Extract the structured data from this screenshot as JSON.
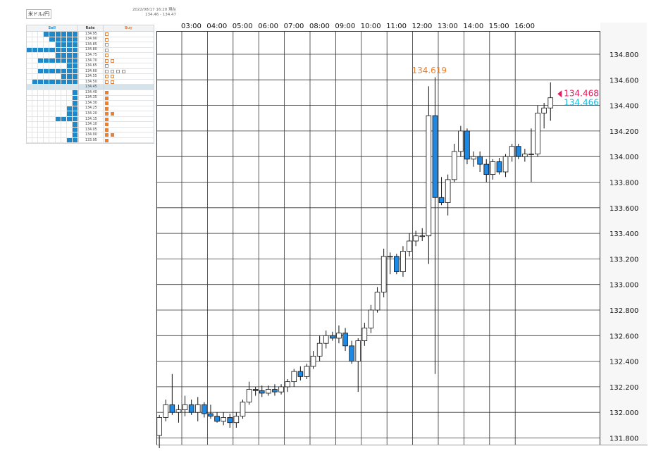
{
  "header": {
    "pair_button": "米ドル/円",
    "timestamp": "2022/08/17 16:20 現在",
    "range": "134.46 - 134.47"
  },
  "orderbook": {
    "headers": {
      "sell": "Sell",
      "rate": "Rate",
      "buy": "Buy"
    },
    "colors": {
      "sell": "#1e88c8",
      "buy": "#f07e2a"
    },
    "rows": [
      {
        "rate": "134.95",
        "sell": 6,
        "buy": 1,
        "buy_type": "outline"
      },
      {
        "rate": "134.90",
        "sell": 5,
        "buy": 1,
        "buy_type": "outline"
      },
      {
        "rate": "134.85",
        "sell": 4,
        "buy": 1,
        "buy_type": "outline"
      },
      {
        "rate": "134.80",
        "sell": 9,
        "buy": 1,
        "buy_type": "outline"
      },
      {
        "rate": "134.75",
        "sell": 4,
        "buy": 1,
        "buy_type": "outline"
      },
      {
        "rate": "134.70",
        "sell": 7,
        "buy": 2,
        "buy_type": "outline"
      },
      {
        "rate": "134.65",
        "sell": 2,
        "buy": 1,
        "buy_type": "outline"
      },
      {
        "rate": "134.60",
        "sell": 7,
        "buy": 4,
        "buy_type": "outline"
      },
      {
        "rate": "134.55",
        "sell": 3,
        "buy": 2,
        "buy_type": "outline"
      },
      {
        "rate": "134.50",
        "sell": 8,
        "buy": 2,
        "buy_type": "outline"
      },
      {
        "rate": "134.45",
        "sell": 0,
        "buy": 0,
        "buy_type": "none",
        "current": true
      },
      {
        "rate": "134.40",
        "sell": 1,
        "buy": 1,
        "buy_type": "filled"
      },
      {
        "rate": "134.35",
        "sell": 1,
        "buy": 1,
        "buy_type": "filled"
      },
      {
        "rate": "134.30",
        "sell": 1,
        "buy": 1,
        "buy_type": "filled"
      },
      {
        "rate": "134.25",
        "sell": 2,
        "buy": 1,
        "buy_type": "filled"
      },
      {
        "rate": "134.20",
        "sell": 2,
        "buy": 2,
        "buy_type": "filled"
      },
      {
        "rate": "134.15",
        "sell": 4,
        "buy": 1,
        "buy_type": "filled"
      },
      {
        "rate": "134.10",
        "sell": 1,
        "buy": 1,
        "buy_type": "filled"
      },
      {
        "rate": "134.05",
        "sell": 1,
        "buy": 1,
        "buy_type": "filled"
      },
      {
        "rate": "134.00",
        "sell": 1,
        "buy": 2,
        "buy_type": "filled"
      },
      {
        "rate": "133.95",
        "sell": 2,
        "buy": 1,
        "buy_type": "filled"
      }
    ]
  },
  "chart_data": {
    "type": "candlestick",
    "x_ticks": [
      "03:00",
      "04:00",
      "05:00",
      "06:00",
      "07:00",
      "08:00",
      "09:00",
      "10:00",
      "11:00",
      "12:00",
      "13:00",
      "14:00",
      "15:00",
      "16:00"
    ],
    "y_ticks": [
      "134.800",
      "134.600",
      "134.400",
      "134.200",
      "134.000",
      "133.800",
      "133.600",
      "133.400",
      "133.200",
      "133.000",
      "132.800",
      "132.600",
      "132.400",
      "132.200",
      "132.000",
      "131.800"
    ],
    "ylim": [
      131.72,
      134.92
    ],
    "grid": true,
    "bull_color": "#ffffff",
    "bear_color": "#1e88e5",
    "annotations": {
      "high": {
        "text": "134.619",
        "value": 134.619,
        "color": "#f07e2a"
      },
      "ask": {
        "text": "134.468",
        "value": 134.468,
        "color": "#e8195a"
      },
      "bid": {
        "text": "134.466",
        "value": 134.466,
        "color": "#17b8e0"
      }
    },
    "candles": [
      {
        "t": "02:00",
        "o": 131.82,
        "h": 131.98,
        "l": 131.72,
        "c": 131.96
      },
      {
        "t": "02:15",
        "o": 131.96,
        "h": 132.1,
        "l": 131.93,
        "c": 132.06
      },
      {
        "t": "02:30",
        "o": 132.06,
        "h": 132.3,
        "l": 131.98,
        "c": 132.0
      },
      {
        "t": "02:45",
        "o": 132.0,
        "h": 132.06,
        "l": 131.92,
        "c": 132.02
      },
      {
        "t": "03:00",
        "o": 132.02,
        "h": 132.13,
        "l": 131.97,
        "c": 132.06
      },
      {
        "t": "03:15",
        "o": 132.06,
        "h": 132.1,
        "l": 131.98,
        "c": 132.0
      },
      {
        "t": "03:30",
        "o": 132.0,
        "h": 132.12,
        "l": 131.93,
        "c": 132.06
      },
      {
        "t": "03:45",
        "o": 132.06,
        "h": 132.08,
        "l": 131.96,
        "c": 131.99
      },
      {
        "t": "04:00",
        "o": 131.99,
        "h": 132.06,
        "l": 131.95,
        "c": 131.97
      },
      {
        "t": "04:15",
        "o": 131.97,
        "h": 132.0,
        "l": 131.92,
        "c": 131.93
      },
      {
        "t": "04:30",
        "o": 131.93,
        "h": 132.0,
        "l": 131.9,
        "c": 131.96
      },
      {
        "t": "04:45",
        "o": 131.96,
        "h": 131.99,
        "l": 131.88,
        "c": 131.92
      },
      {
        "t": "05:00",
        "o": 131.92,
        "h": 132.0,
        "l": 131.88,
        "c": 131.97
      },
      {
        "t": "05:15",
        "o": 131.97,
        "h": 132.1,
        "l": 131.95,
        "c": 132.08
      },
      {
        "t": "05:30",
        "o": 132.08,
        "h": 132.24,
        "l": 132.06,
        "c": 132.18
      },
      {
        "t": "05:45",
        "o": 132.18,
        "h": 132.2,
        "l": 132.13,
        "c": 132.17
      },
      {
        "t": "06:00",
        "o": 132.17,
        "h": 132.21,
        "l": 132.12,
        "c": 132.15
      },
      {
        "t": "06:15",
        "o": 132.15,
        "h": 132.21,
        "l": 132.13,
        "c": 132.18
      },
      {
        "t": "06:30",
        "o": 132.18,
        "h": 132.22,
        "l": 132.13,
        "c": 132.16
      },
      {
        "t": "06:45",
        "o": 132.16,
        "h": 132.22,
        "l": 132.14,
        "c": 132.2
      },
      {
        "t": "07:00",
        "o": 132.2,
        "h": 132.26,
        "l": 132.16,
        "c": 132.24
      },
      {
        "t": "07:15",
        "o": 132.24,
        "h": 132.34,
        "l": 132.2,
        "c": 132.32
      },
      {
        "t": "07:30",
        "o": 132.32,
        "h": 132.36,
        "l": 132.25,
        "c": 132.28
      },
      {
        "t": "07:45",
        "o": 132.28,
        "h": 132.38,
        "l": 132.26,
        "c": 132.36
      },
      {
        "t": "08:00",
        "o": 132.36,
        "h": 132.48,
        "l": 132.34,
        "c": 132.44
      },
      {
        "t": "08:15",
        "o": 132.44,
        "h": 132.6,
        "l": 132.4,
        "c": 132.54
      },
      {
        "t": "08:30",
        "o": 132.54,
        "h": 132.64,
        "l": 132.5,
        "c": 132.6
      },
      {
        "t": "08:45",
        "o": 132.6,
        "h": 132.63,
        "l": 132.56,
        "c": 132.58
      },
      {
        "t": "09:00",
        "o": 132.58,
        "h": 132.68,
        "l": 132.54,
        "c": 132.62
      },
      {
        "t": "09:15",
        "o": 132.62,
        "h": 132.66,
        "l": 132.48,
        "c": 132.52
      },
      {
        "t": "09:30",
        "o": 132.52,
        "h": 132.56,
        "l": 132.38,
        "c": 132.4
      },
      {
        "t": "09:45",
        "o": 132.4,
        "h": 132.58,
        "l": 132.16,
        "c": 132.56
      },
      {
        "t": "10:00",
        "o": 132.56,
        "h": 132.7,
        "l": 132.52,
        "c": 132.66
      },
      {
        "t": "10:15",
        "o": 132.66,
        "h": 132.84,
        "l": 132.62,
        "c": 132.8
      },
      {
        "t": "10:30",
        "o": 132.8,
        "h": 132.98,
        "l": 132.78,
        "c": 132.94
      },
      {
        "t": "10:45",
        "o": 132.94,
        "h": 133.28,
        "l": 132.9,
        "c": 133.22
      },
      {
        "t": "11:00",
        "o": 133.22,
        "h": 133.25,
        "l": 133.08,
        "c": 133.22
      },
      {
        "t": "11:15",
        "o": 133.22,
        "h": 133.24,
        "l": 133.08,
        "c": 133.1
      },
      {
        "t": "11:30",
        "o": 133.1,
        "h": 133.3,
        "l": 133.06,
        "c": 133.26
      },
      {
        "t": "11:45",
        "o": 133.26,
        "h": 133.4,
        "l": 133.22,
        "c": 133.34
      },
      {
        "t": "12:00",
        "o": 133.34,
        "h": 133.42,
        "l": 133.3,
        "c": 133.38
      },
      {
        "t": "12:15",
        "o": 133.38,
        "h": 133.44,
        "l": 133.34,
        "c": 133.38
      },
      {
        "t": "12:30",
        "o": 133.38,
        "h": 134.55,
        "l": 133.16,
        "c": 134.32
      },
      {
        "t": "12:45",
        "o": 134.32,
        "h": 134.62,
        "l": 132.3,
        "c": 133.68
      },
      {
        "t": "13:00",
        "o": 133.68,
        "h": 133.84,
        "l": 133.62,
        "c": 133.64
      },
      {
        "t": "13:15",
        "o": 133.64,
        "h": 133.86,
        "l": 133.54,
        "c": 133.82
      },
      {
        "t": "13:30",
        "o": 133.82,
        "h": 134.1,
        "l": 133.8,
        "c": 134.04
      },
      {
        "t": "13:45",
        "o": 134.04,
        "h": 134.24,
        "l": 134.0,
        "c": 134.2
      },
      {
        "t": "14:00",
        "o": 134.2,
        "h": 134.22,
        "l": 133.94,
        "c": 133.98
      },
      {
        "t": "14:15",
        "o": 133.98,
        "h": 134.04,
        "l": 133.92,
        "c": 134.0
      },
      {
        "t": "14:30",
        "o": 134.0,
        "h": 134.04,
        "l": 133.88,
        "c": 133.94
      },
      {
        "t": "14:45",
        "o": 133.94,
        "h": 133.98,
        "l": 133.8,
        "c": 133.86
      },
      {
        "t": "15:00",
        "o": 133.86,
        "h": 133.98,
        "l": 133.82,
        "c": 133.96
      },
      {
        "t": "15:15",
        "o": 133.96,
        "h": 133.99,
        "l": 133.86,
        "c": 133.88
      },
      {
        "t": "15:30",
        "o": 133.88,
        "h": 134.02,
        "l": 133.84,
        "c": 134.0
      },
      {
        "t": "15:45",
        "o": 134.0,
        "h": 134.1,
        "l": 133.96,
        "c": 134.08
      },
      {
        "t": "16:00",
        "o": 134.08,
        "h": 134.1,
        "l": 133.98,
        "c": 134.0
      },
      {
        "t": "16:15",
        "o": 134.0,
        "h": 134.06,
        "l": 133.96,
        "c": 134.02
      },
      {
        "t": "16:30",
        "o": 134.02,
        "h": 134.22,
        "l": 133.8,
        "c": 134.02
      },
      {
        "t": "16:45",
        "o": 134.02,
        "h": 134.4,
        "l": 134.0,
        "c": 134.34
      },
      {
        "t": "17:00",
        "o": 134.34,
        "h": 134.42,
        "l": 134.22,
        "c": 134.38
      },
      {
        "t": "17:15",
        "o": 134.38,
        "h": 134.58,
        "l": 134.28,
        "c": 134.46
      }
    ]
  }
}
